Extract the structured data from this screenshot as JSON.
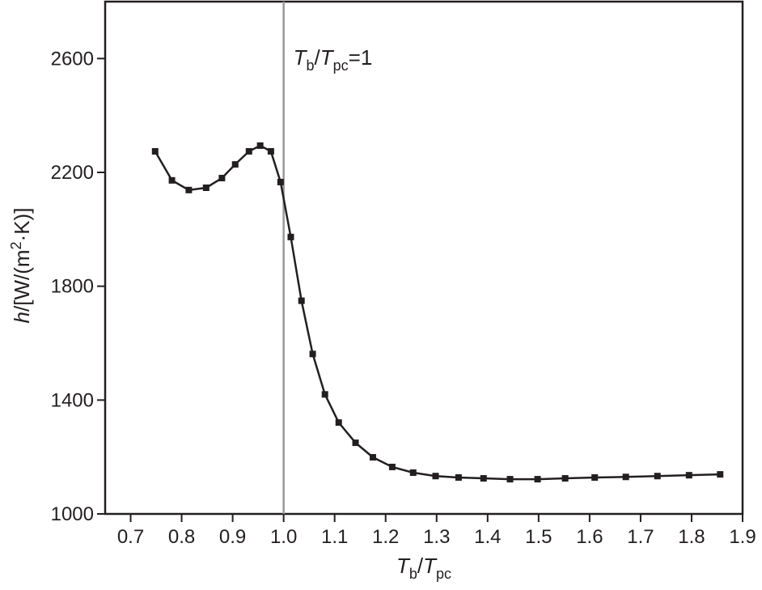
{
  "chart_data": {
    "type": "line",
    "x_label": [
      "T",
      "b",
      "/",
      "T",
      "pc"
    ],
    "y_label": [
      "h",
      "/[W/(m",
      "2",
      "·K)]"
    ],
    "annotation": [
      "T",
      "b",
      "/",
      "T",
      "pc",
      "=1"
    ],
    "vline": 1,
    "xlim": [
      0.65,
      1.9
    ],
    "ylim": [
      1000,
      2800
    ],
    "xticks": [
      0.7,
      0.8,
      0.9,
      {
        "value": 1,
        "label": "1.0"
      },
      1.1,
      1.2,
      1.3,
      1.4,
      1.5,
      1.6,
      1.7,
      1.8,
      1.9
    ],
    "yticks": [
      1000,
      1400,
      1800,
      2200,
      2600
    ],
    "series": [
      {
        "color": "#231f20",
        "x": [
          0.748,
          0.781,
          0.814,
          0.848,
          0.879,
          0.905,
          0.932,
          0.954,
          0.975,
          0.994,
          1.014,
          1.035,
          1.057,
          1.081,
          1.108,
          1.141,
          1.175,
          1.213,
          1.254,
          1.298,
          1.343,
          1.392,
          1.444,
          1.498,
          1.552,
          1.61,
          1.671,
          1.733,
          1.795,
          1.856
        ],
        "values": [
          2274,
          2172,
          2138,
          2146,
          2180,
          2228,
          2274,
          2294,
          2274,
          2166,
          1973,
          1749,
          1562,
          1420,
          1321,
          1250,
          1199,
          1165,
          1145,
          1133,
          1128,
          1125,
          1122,
          1122,
          1125,
          1128,
          1130,
          1133,
          1136,
          1139
        ]
      }
    ]
  }
}
